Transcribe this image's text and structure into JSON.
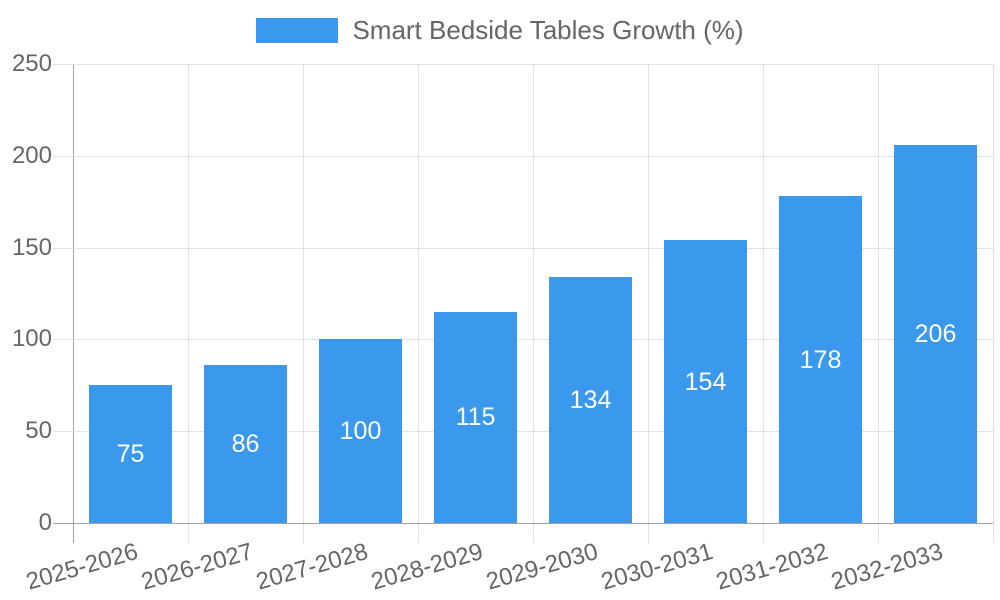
{
  "chart_data": {
    "type": "bar",
    "legend": "Smart Bedside Tables Growth (%)",
    "legend_position": "top",
    "categories": [
      "2025-2026",
      "2026-2027",
      "2027-2028",
      "2028-2029",
      "2029-2030",
      "2030-2031",
      "2031-2032",
      "2032-2033"
    ],
    "values": [
      75,
      86,
      100,
      115,
      134,
      154,
      178,
      206
    ],
    "yticks": [
      0,
      50,
      100,
      150,
      200,
      250
    ],
    "ylim": [
      0,
      250
    ],
    "xlabel": "",
    "ylabel": "",
    "grid": true,
    "value_labels": "centered-inside-bars",
    "colors": {
      "bar": "#3a99ec",
      "value_label": "#ffffff",
      "grid_line": "#e3e3e3",
      "axis_line": "#a3a3a3",
      "tick_text": "#666666",
      "legend_text": "#666666",
      "background": "#ffffff"
    }
  }
}
